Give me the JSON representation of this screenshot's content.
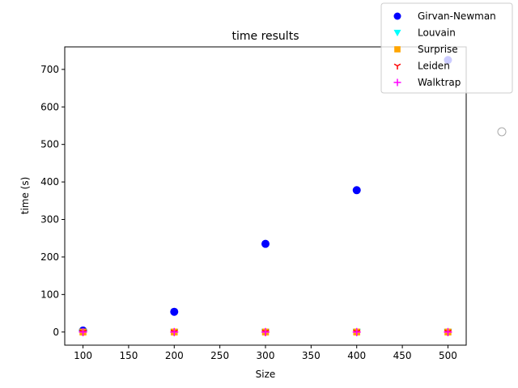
{
  "chart_data": {
    "type": "scatter",
    "title": "time results",
    "xlabel": "Size",
    "ylabel": "time (s)",
    "xlim": [
      80,
      520
    ],
    "ylim": [
      -35,
      760
    ],
    "xticks": [
      100,
      150,
      200,
      250,
      300,
      350,
      400,
      450,
      500
    ],
    "yticks": [
      0,
      100,
      200,
      300,
      400,
      500,
      600,
      700
    ],
    "grid": false,
    "legend_position": "top-right",
    "x": [
      100,
      200,
      300,
      400,
      500
    ],
    "series": [
      {
        "name": "Girvan-Newman",
        "marker": "circle",
        "color": "#0000ff",
        "values": [
          4,
          54,
          235,
          378,
          725
        ]
      },
      {
        "name": "Louvain",
        "marker": "triangle-down",
        "color": "#00ffff",
        "values": [
          0,
          0,
          0,
          0,
          0
        ]
      },
      {
        "name": "Surprise",
        "marker": "square",
        "color": "#ffa500",
        "values": [
          0,
          0,
          0,
          0,
          0
        ]
      },
      {
        "name": "Leiden",
        "marker": "tri-down",
        "color": "#ff0000",
        "values": [
          0,
          0,
          0,
          0,
          0
        ]
      },
      {
        "name": "Walktrap",
        "marker": "plus",
        "color": "#ff00ff",
        "values": [
          0,
          0,
          0,
          0,
          0
        ]
      }
    ]
  }
}
